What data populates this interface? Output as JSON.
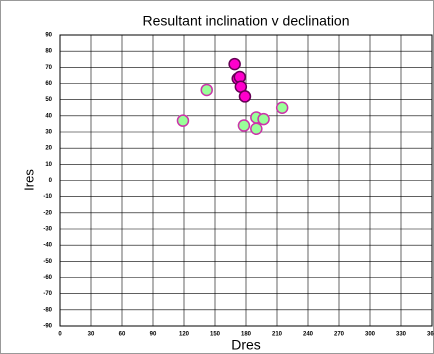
{
  "chart_data": {
    "type": "scatter",
    "title": "Resultant inclination v declination",
    "x_label": "Dres",
    "y_label": "Ires",
    "series": [
      {
        "color": "#ff00cc",
        "x": [
          169,
          172,
          174,
          175,
          179
        ],
        "values": [
          72,
          63,
          64,
          58,
          52
        ]
      },
      {
        "color": "#99ff99",
        "x": [
          119,
          142,
          215,
          190,
          197,
          178,
          190
        ],
        "values": [
          37,
          56,
          45,
          39,
          38,
          34,
          32
        ]
      }
    ],
    "xlim": [
      0,
      360
    ],
    "xticks": [
      0,
      30,
      60,
      90,
      120,
      150,
      180,
      210,
      240,
      270,
      300,
      330,
      360
    ],
    "ylim": [
      -90,
      90
    ],
    "yticks": [
      90,
      80,
      70,
      60,
      50,
      40,
      30,
      20,
      10,
      0,
      -10,
      -20,
      -30,
      -40,
      -50,
      -60,
      -70,
      -80,
      -90
    ],
    "grid": true
  }
}
